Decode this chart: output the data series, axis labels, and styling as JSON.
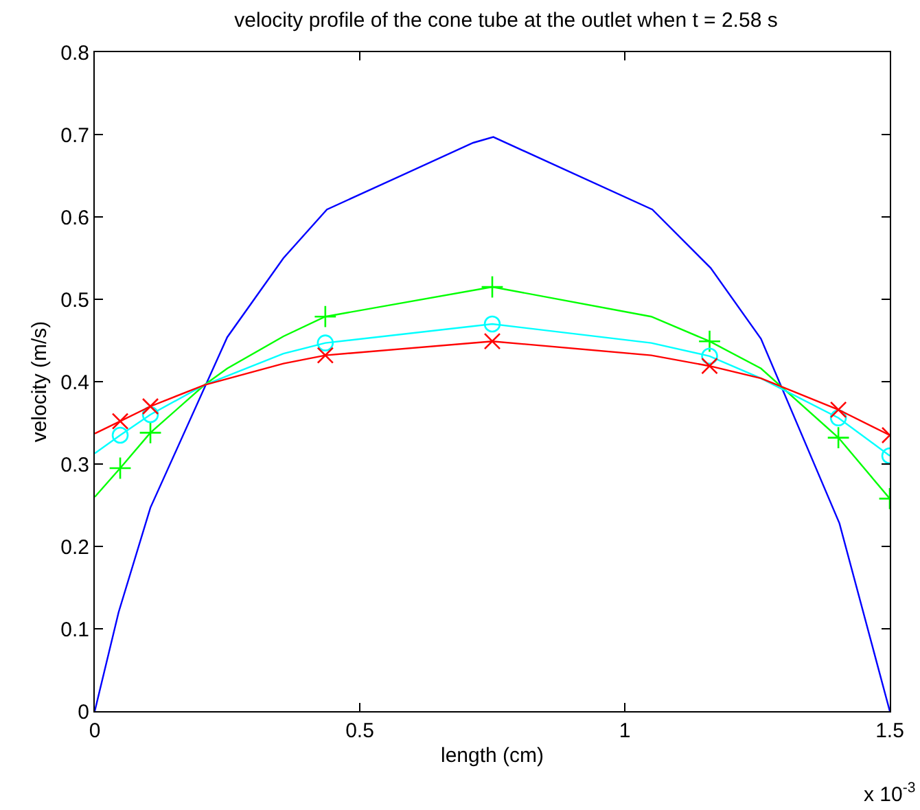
{
  "chart_data": {
    "type": "line",
    "title": "velocity profile of the cone tube at the outlet when t = 2.58 s",
    "xlabel": "length (cm)",
    "ylabel": "velocity (m/s)",
    "annotations": [
      "x 10$^{-3}$"
    ],
    "xlim": [
      0,
      1.5
    ],
    "xticks": [
      0,
      0.5,
      1,
      1.5
    ],
    "ylim": [
      0,
      0.8
    ],
    "yticks": [
      0,
      0.1,
      0.2,
      0.3,
      0.4,
      0.5,
      0.6,
      0.7,
      0.8
    ],
    "series": [
      {
        "color": "#0000ff",
        "marker": "none",
        "x": [
          0,
          0.045,
          0.105,
          0.25,
          0.356,
          0.438,
          0.714,
          0.752,
          1.052,
          1.162,
          1.257,
          1.405,
          1.5
        ],
        "values": [
          0,
          0.12,
          0.247,
          0.454,
          0.55,
          0.609,
          0.69,
          0.697,
          0.609,
          0.538,
          0.452,
          0.228,
          0
        ]
      },
      {
        "color": "#00ff00",
        "marker": "none",
        "x": [
          0,
          0.048,
          0.105,
          0.207,
          0.25,
          0.356,
          0.435,
          0.75,
          1.05,
          1.16,
          1.257,
          1.403,
          1.5
        ],
        "values": [
          0.26,
          0.295,
          0.338,
          0.396,
          0.416,
          0.455,
          0.479,
          0.515,
          0.479,
          0.449,
          0.416,
          0.332,
          0.258
        ]
      },
      {
        "type": "scatter",
        "color": "#00ff00",
        "marker": "cross",
        "x": [
          0.048,
          0.105,
          0.435,
          0.75,
          1.16,
          1.403,
          1.5
        ],
        "values": [
          0.295,
          0.338,
          0.479,
          0.515,
          0.449,
          0.332,
          0.258
        ]
      },
      {
        "color": "#00ffff",
        "marker": "none",
        "x": [
          0,
          0.048,
          0.105,
          0.207,
          0.356,
          0.435,
          0.75,
          1.05,
          1.16,
          1.257,
          1.403,
          1.5
        ],
        "values": [
          0.313,
          0.335,
          0.36,
          0.396,
          0.434,
          0.447,
          0.47,
          0.447,
          0.431,
          0.404,
          0.356,
          0.31
        ]
      },
      {
        "type": "scatter",
        "color": "#00ffff",
        "marker": "circle",
        "x": [
          0.048,
          0.105,
          0.435,
          0.75,
          1.16,
          1.403,
          1.5
        ],
        "values": [
          0.335,
          0.36,
          0.447,
          0.47,
          0.431,
          0.356,
          0.31
        ]
      },
      {
        "color": "#ff0000",
        "marker": "none",
        "x": [
          0,
          0.048,
          0.105,
          0.207,
          0.356,
          0.435,
          0.75,
          1.05,
          1.16,
          1.257,
          1.403,
          1.5
        ],
        "values": [
          0.337,
          0.352,
          0.37,
          0.396,
          0.422,
          0.432,
          0.449,
          0.432,
          0.419,
          0.404,
          0.366,
          0.335
        ]
      },
      {
        "type": "scatter",
        "color": "#ff0000",
        "marker": "x",
        "x": [
          0.048,
          0.105,
          0.435,
          0.75,
          1.16,
          1.403,
          1.5
        ],
        "values": [
          0.352,
          0.37,
          0.432,
          0.449,
          0.419,
          0.366,
          0.335
        ]
      }
    ]
  }
}
